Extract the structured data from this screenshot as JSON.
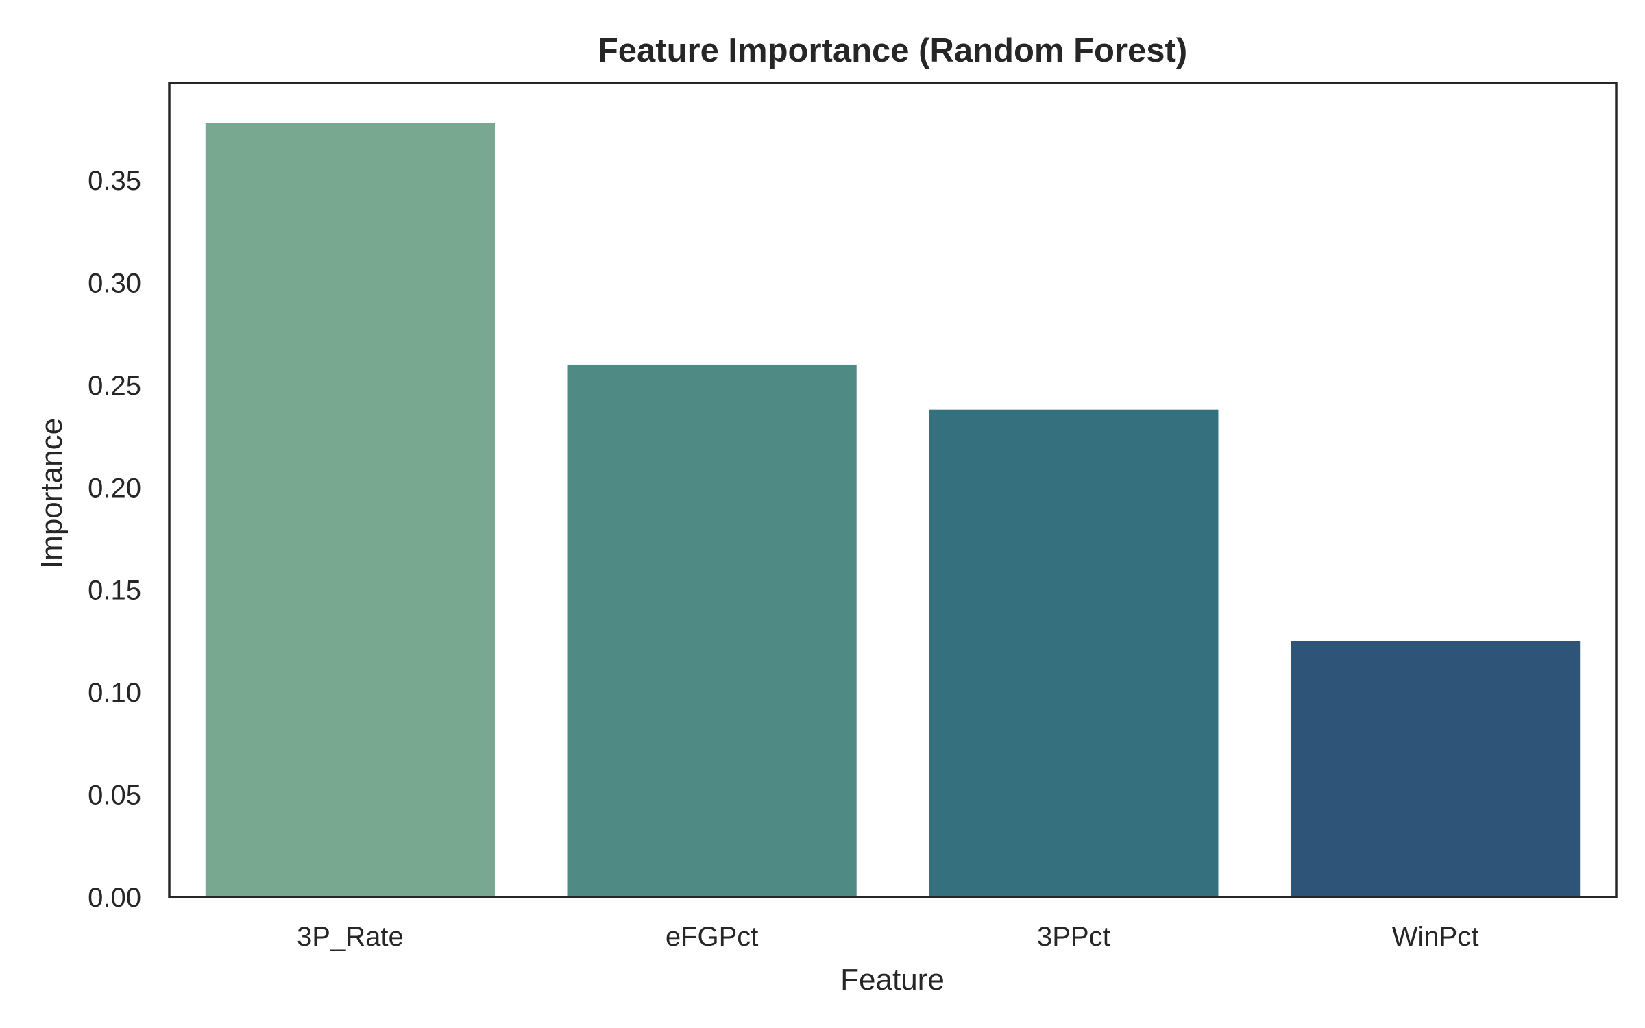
{
  "chart_data": {
    "type": "bar",
    "title": "Feature Importance (Random Forest)",
    "xlabel": "Feature",
    "ylabel": "Importance",
    "categories": [
      "3P_Rate",
      "eFGPct",
      "3PPct",
      "WinPct"
    ],
    "values": [
      0.378,
      0.26,
      0.238,
      0.125
    ],
    "colors": [
      "#78a88f",
      "#4f8a84",
      "#35707e",
      "#2e5477"
    ],
    "ylim": [
      0,
      0.3975
    ],
    "yticks": [
      0.0,
      0.05,
      0.1,
      0.15,
      0.2,
      0.25,
      0.3,
      0.35
    ],
    "ytick_labels": [
      "0.00",
      "0.05",
      "0.10",
      "0.15",
      "0.20",
      "0.25",
      "0.30",
      "0.35"
    ],
    "grid": false,
    "legend": false
  }
}
